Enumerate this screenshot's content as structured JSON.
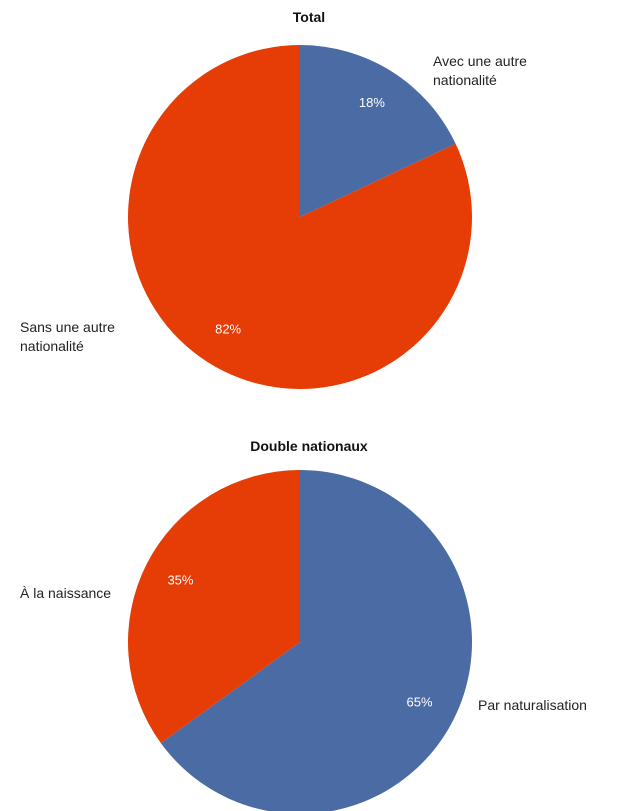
{
  "chart_data": [
    {
      "type": "pie",
      "title": "Total",
      "categories": [
        "Avec une autre nationalité",
        "Sans une autre nationalité"
      ],
      "values": [
        18,
        82
      ],
      "value_labels": [
        "18%",
        "82%"
      ],
      "colors": [
        "#4a6ba3",
        "#e63c05"
      ]
    },
    {
      "type": "pie",
      "title": "Double nationaux",
      "categories": [
        "Par naturalisation",
        "À la naissance"
      ],
      "values": [
        65,
        35
      ],
      "value_labels": [
        "65%",
        "35%"
      ],
      "colors": [
        "#4a6ba3",
        "#e63c05"
      ]
    }
  ]
}
